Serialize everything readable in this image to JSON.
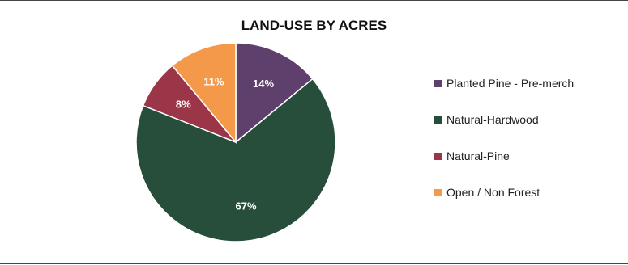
{
  "chart_data": {
    "type": "pie",
    "title": "LAND-USE BY ACRES",
    "categories": [
      "Planted Pine - Pre-merch",
      "Natural-Hardwood",
      "Natural-Pine",
      "Open / Non Forest"
    ],
    "values": [
      14,
      67,
      8,
      11
    ],
    "data_labels": [
      "14%",
      "67%",
      "8%",
      "11%"
    ],
    "colors": [
      "#5F3F6B",
      "#264E3A",
      "#9A3648",
      "#F4994A"
    ],
    "legend_position": "right"
  }
}
